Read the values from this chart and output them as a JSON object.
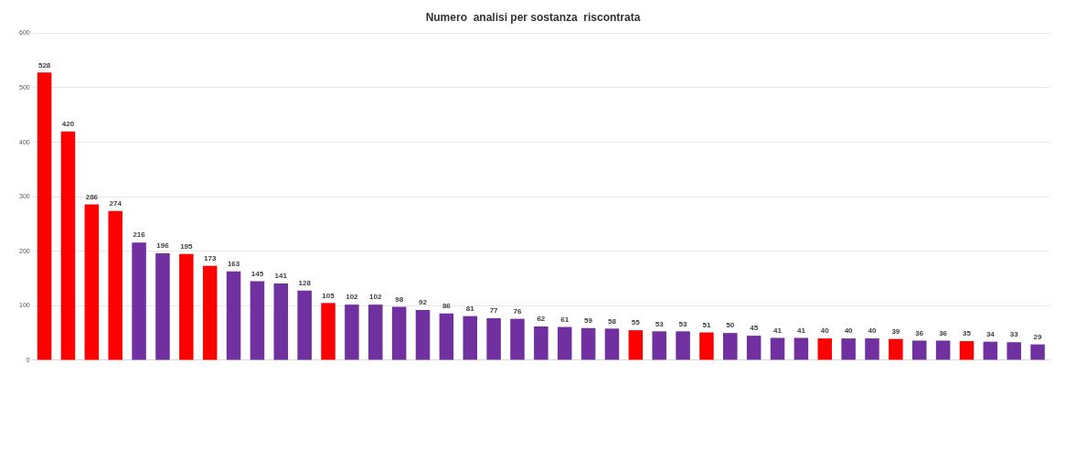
{
  "chart_data": {
    "type": "bar",
    "title": "Numero  analisi per sostanza  riscontrata",
    "categories": [
      null,
      null,
      null,
      null,
      null,
      null,
      null,
      null,
      null,
      null,
      null,
      null,
      null,
      null,
      null,
      null,
      null,
      null,
      null,
      null,
      null,
      null,
      null,
      null,
      null,
      null,
      null,
      null,
      null,
      null,
      null,
      null,
      null,
      null,
      null,
      null,
      null,
      null,
      null,
      null,
      null,
      null,
      null
    ],
    "values": [
      528,
      420,
      286,
      274,
      216,
      196,
      195,
      173,
      163,
      145,
      141,
      128,
      105,
      102,
      102,
      98,
      92,
      86,
      81,
      77,
      76,
      62,
      61,
      59,
      58,
      55,
      53,
      53,
      51,
      50,
      45,
      41,
      41,
      40,
      40,
      40,
      39,
      36,
      36,
      35,
      34,
      33,
      29
    ],
    "colors": [
      "#ff0000",
      "#ff0000",
      "#ff0000",
      "#ff0000",
      "#7030a0",
      "#7030a0",
      "#ff0000",
      "#ff0000",
      "#7030a0",
      "#7030a0",
      "#7030a0",
      "#7030a0",
      "#ff0000",
      "#7030a0",
      "#7030a0",
      "#7030a0",
      "#7030a0",
      "#7030a0",
      "#7030a0",
      "#7030a0",
      "#7030a0",
      "#7030a0",
      "#7030a0",
      "#7030a0",
      "#7030a0",
      "#ff0000",
      "#7030a0",
      "#7030a0",
      "#ff0000",
      "#7030a0",
      "#7030a0",
      "#7030a0",
      "#7030a0",
      "#ff0000",
      "#7030a0",
      "#7030a0",
      "#ff0000",
      "#7030a0",
      "#7030a0",
      "#ff0000",
      "#7030a0",
      "#7030a0",
      "#7030a0"
    ],
    "ylim": [
      0,
      600
    ],
    "yticks": [
      0,
      100,
      200,
      300,
      400,
      500,
      600
    ],
    "grid": "y",
    "data_labels": true
  }
}
